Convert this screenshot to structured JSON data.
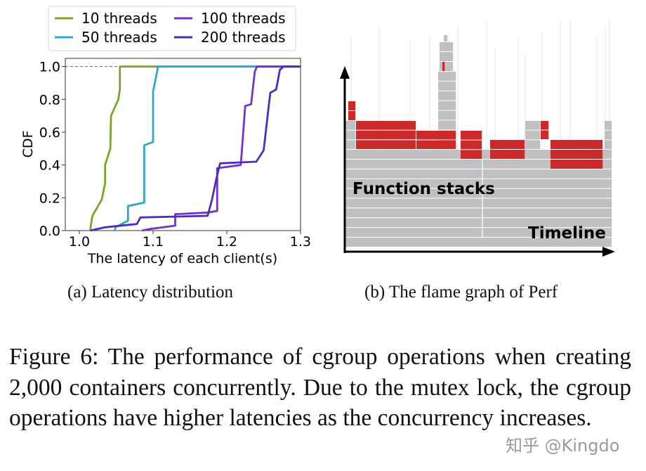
{
  "chart_data": {
    "type": "line",
    "xlabel": "The latency of each client(s)",
    "ylabel": "CDF",
    "xlim": [
      0.981,
      1.3
    ],
    "ylim": [
      0,
      1.05
    ],
    "xticks": [
      "1.0",
      "1.1",
      "1.2",
      "1.3"
    ],
    "yticks": [
      "0.0",
      "0.2",
      "0.4",
      "0.6",
      "0.8",
      "1.0"
    ],
    "grid": false,
    "reference_line": {
      "y": 1.0,
      "style": "dashed"
    },
    "legend_position": "top",
    "series": [
      {
        "name": "10 threads",
        "color": "#7fa32a",
        "x": [
          1.0146,
          1.0178,
          1.0305,
          1.035,
          1.035,
          1.042,
          1.043,
          1.053,
          1.055,
          1.055,
          1.3
        ],
        "y": [
          0,
          0.09,
          0.19,
          0.29,
          0.4,
          0.5,
          0.7,
          0.8,
          0.86,
          1.0,
          1.0
        ]
      },
      {
        "name": "50 threads",
        "color": "#2ea8c8",
        "x": [
          1.048,
          1.049,
          1.066,
          1.066,
          1.088,
          1.088,
          1.1,
          1.1,
          1.106,
          1.106,
          1.3
        ],
        "y": [
          0,
          0.02,
          0.06,
          0.15,
          0.17,
          0.52,
          0.54,
          0.85,
          0.98,
          1.0,
          1.0
        ]
      },
      {
        "name": "100 threads",
        "color": "#7332c9",
        "x": [
          1.085,
          1.096,
          1.13,
          1.13,
          1.175,
          1.187,
          1.187,
          1.219,
          1.225,
          1.233,
          1.238,
          1.241,
          1.3
        ],
        "y": [
          0,
          0.01,
          0.03,
          0.1,
          0.11,
          0.12,
          0.38,
          0.4,
          0.76,
          0.77,
          0.97,
          1.0,
          1.0
        ]
      },
      {
        "name": "200 threads",
        "color": "#4a2ec0",
        "x": [
          1.015,
          1.035,
          1.078,
          1.083,
          1.174,
          1.18,
          1.186,
          1.191,
          1.24,
          1.25,
          1.259,
          1.267,
          1.272,
          1.277,
          1.3
        ],
        "y": [
          0,
          0.02,
          0.04,
          0.08,
          0.09,
          0.19,
          0.32,
          0.41,
          0.42,
          0.49,
          0.84,
          0.86,
          0.98,
          1.0,
          1.0
        ]
      }
    ]
  },
  "flame_graph": {
    "label_stacks": "Function stacks",
    "label_timeline": "Timeline",
    "stack_color": "#c0c0c0",
    "highlight_color": "#cc2a2a"
  },
  "subcaptions": {
    "a": "(a)  Latency distribution",
    "b": "(b)  The flame graph of Perf"
  },
  "caption": "Figure 6:  The performance of cgroup operations when creating 2,000 containers concurrently. Due to the mutex lock, the cgroup operations have higher latencies as the concurrency increases.",
  "watermark": "知乎 @Kingdo"
}
